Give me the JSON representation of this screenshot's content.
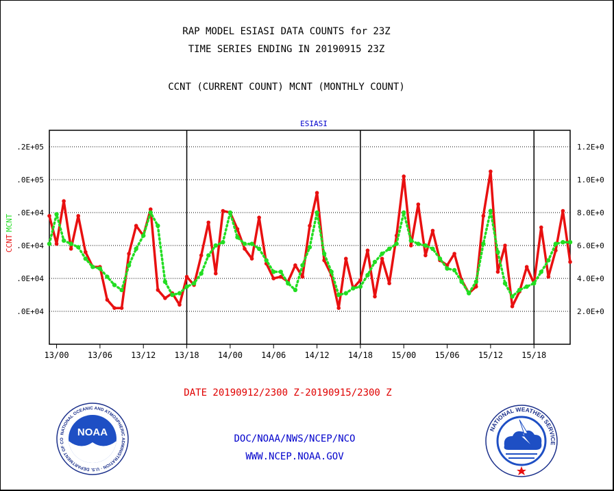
{
  "title_line1": "RAP MODEL ESIASI DATA COUNTS for 23Z",
  "title_line2": "TIME SERIES ENDING IN 20190915 23Z",
  "subtitle": "CCNT (CURRENT COUNT) MCNT (MONTHLY COUNT)",
  "footer": {
    "date_range": "DATE 20190912/2300 Z-20190915/2300 Z",
    "doc": "DOC/NOAA/NWS/NCEP/NCO",
    "www": "WWW.NCEP.NOAA.GOV"
  },
  "logos": {
    "noaa_text": "NOAA",
    "noaa_ring": "NATIONAL OCEANIC AND ATMOSPHERIC ADMINISTRATION · U.S. DEPARTMENT OF COMMERCE",
    "nws_ring": "NATIONAL WEATHER SERVICE"
  },
  "colors": {
    "ccnt": "#e81010",
    "mcnt": "#22dd22",
    "axis": "#000000",
    "panel_title": "#0000cc"
  },
  "chart_data": {
    "type": "line",
    "panel_title": "ESIASI",
    "ylabel_left": "CCNT",
    "ylabel_right": "MCNT",
    "ylim": [
      0,
      130000
    ],
    "yticks_left": [
      ".2E+05",
      ".0E+05",
      ".0E+04",
      ".0E+04",
      ".0E+04",
      ".0E+04"
    ],
    "yticks_right": [
      "1.2E+0",
      "1.0E+0",
      "8.0E+0",
      "6.0E+0",
      "4.0E+0",
      "2.0E+0"
    ],
    "ytick_values": [
      120000,
      100000,
      80000,
      60000,
      40000,
      20000
    ],
    "xticks": [
      "13/00",
      "13/06",
      "13/12",
      "13/18",
      "14/00",
      "14/06",
      "14/12",
      "14/18",
      "15/00",
      "15/06",
      "15/12",
      "15/18"
    ],
    "x_start_hours_before_first_tick": 1,
    "x_span_hours": 72,
    "day_separator_ticks": [
      3,
      7,
      11
    ],
    "grid": "horizontal dotted",
    "series": [
      {
        "name": "CCNT",
        "style": "solid",
        "values": [
          78000,
          61000,
          87000,
          58000,
          78000,
          56000,
          47000,
          47000,
          27000,
          22000,
          22000,
          55000,
          72000,
          66000,
          82000,
          33000,
          28000,
          31000,
          24000,
          41000,
          36000,
          54000,
          74000,
          43000,
          81000,
          80000,
          70000,
          58000,
          52000,
          77000,
          49000,
          40000,
          41000,
          38000,
          48000,
          41000,
          72000,
          92000,
          51000,
          42000,
          22000,
          52000,
          34000,
          39000,
          57000,
          29000,
          52000,
          37000,
          66000,
          102000,
          60000,
          85000,
          54000,
          69000,
          51000,
          48000,
          55000,
          39000,
          31000,
          35000,
          78000,
          105000,
          44000,
          60000,
          23000,
          32000,
          47000,
          37000,
          71000,
          41000,
          57000,
          81000,
          50000
        ]
      },
      {
        "name": "MCNT",
        "style": "dotted",
        "values": [
          61000,
          79000,
          63000,
          61000,
          59000,
          52000,
          47000,
          46000,
          41000,
          36000,
          33000,
          48000,
          58000,
          66000,
          80000,
          72000,
          38000,
          30000,
          31000,
          35000,
          37000,
          43000,
          54000,
          60000,
          62000,
          80000,
          65000,
          61000,
          61000,
          58000,
          51000,
          44000,
          44000,
          37000,
          33000,
          48000,
          59000,
          80000,
          55000,
          44000,
          30000,
          31000,
          34000,
          35000,
          42000,
          50000,
          55000,
          58000,
          61000,
          80000,
          63000,
          61000,
          60000,
          58000,
          52000,
          46000,
          45000,
          38000,
          31000,
          38000,
          61000,
          81000,
          56000,
          37000,
          29000,
          33000,
          35000,
          37000,
          44000,
          51000,
          61000,
          62000,
          62000
        ]
      }
    ]
  }
}
